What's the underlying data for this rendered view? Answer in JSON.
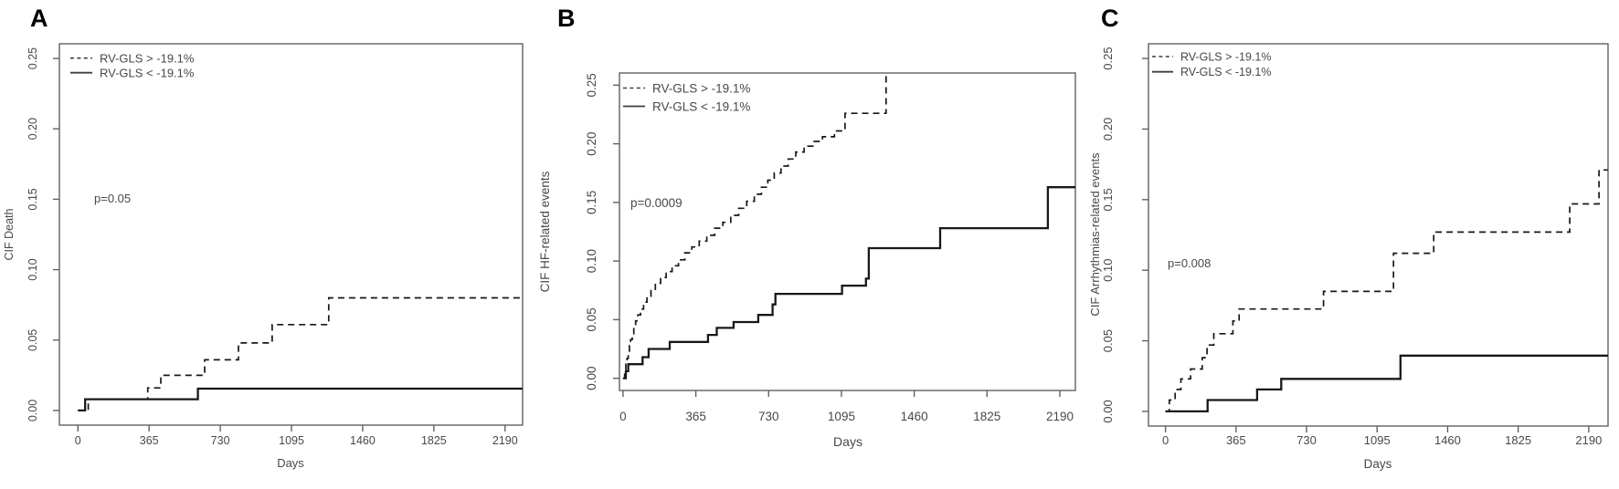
{
  "figure": {
    "background": "#ffffff",
    "curve_color": "#17181a",
    "text_color": "#43494f"
  },
  "chart_data": [
    {
      "type": "line",
      "step": true,
      "panel_label": "A",
      "title": "",
      "xlabel": "Days",
      "ylabel": "CIF Death",
      "p_value": "p=0.05",
      "x_ticks": [
        "0",
        "365",
        "730",
        "1095",
        "1460",
        "1825",
        "2190"
      ],
      "x_tick_values": [
        0,
        365,
        730,
        1095,
        1460,
        1825,
        2190
      ],
      "y_ticks": [
        "0.00",
        "0.05",
        "0.10",
        "0.15",
        "0.20",
        "0.25"
      ],
      "y_tick_values": [
        0,
        0.05,
        0.1,
        0.15,
        0.2,
        0.25
      ],
      "xlim": [
        -95,
        2280
      ],
      "ylim": [
        -0.0104,
        0.2604
      ],
      "grid": false,
      "legend_position": "top-left",
      "legend": [
        {
          "name": "RV-GLS > -19.1%",
          "line": "dashed"
        },
        {
          "name": "RV-GLS < -19.1%",
          "line": "solid"
        }
      ],
      "series": [
        {
          "name": "RV-GLS > -19.1%",
          "line": "dashed",
          "points": [
            [
              0,
              0
            ],
            [
              53,
              0.008
            ],
            [
              358,
              0.016
            ],
            [
              425,
              0.025
            ],
            [
              650,
              0.036
            ],
            [
              823,
              0.048
            ],
            [
              996,
              0.061
            ],
            [
              1286,
              0.08
            ],
            [
              2280,
              0.08
            ]
          ]
        },
        {
          "name": "RV-GLS < -19.1%",
          "line": "solid",
          "points": [
            [
              0,
              0
            ],
            [
              37,
              0.008
            ],
            [
              615,
              0.0155
            ],
            [
              2280,
              0.0155
            ]
          ]
        }
      ]
    },
    {
      "type": "line",
      "step": true,
      "panel_label": "B",
      "title": "",
      "xlabel": "Days",
      "ylabel": "CIF HF-related events",
      "p_value": "p=0.0009",
      "x_ticks": [
        "0",
        "365",
        "730",
        "1095",
        "1460",
        "1825",
        "2190"
      ],
      "x_tick_values": [
        0,
        365,
        730,
        1095,
        1460,
        1825,
        2190
      ],
      "y_ticks": [
        "0.00",
        "0.05",
        "0.10",
        "0.15",
        "0.20",
        "0.25"
      ],
      "y_tick_values": [
        0,
        0.05,
        0.1,
        0.15,
        0.2,
        0.25
      ],
      "xlim": [
        -18,
        2268
      ],
      "ylim": [
        -0.0104,
        0.2604
      ],
      "grid": false,
      "legend_position": "top-left",
      "legend": [
        {
          "name": "RV-GLS > -19.1%",
          "line": "dashed"
        },
        {
          "name": "RV-GLS < -19.1%",
          "line": "solid"
        }
      ],
      "series": [
        {
          "name": "RV-GLS > -19.1%",
          "line": "dashed",
          "points": [
            [
              0,
              0
            ],
            [
              8,
              0.006
            ],
            [
              14,
              0.012
            ],
            [
              20,
              0.017
            ],
            [
              26,
              0.022
            ],
            [
              32,
              0.028
            ],
            [
              38,
              0.033
            ],
            [
              46,
              0.038
            ],
            [
              54,
              0.044
            ],
            [
              63,
              0.049
            ],
            [
              74,
              0.054
            ],
            [
              88,
              0.059
            ],
            [
              103,
              0.065
            ],
            [
              120,
              0.07
            ],
            [
              140,
              0.075
            ],
            [
              162,
              0.081
            ],
            [
              188,
              0.086
            ],
            [
              216,
              0.091
            ],
            [
              246,
              0.096
            ],
            [
              278,
              0.101
            ],
            [
              310,
              0.107
            ],
            [
              345,
              0.112
            ],
            [
              382,
              0.117
            ],
            [
              420,
              0.122
            ],
            [
              460,
              0.128
            ],
            [
              500,
              0.133
            ],
            [
              540,
              0.139
            ],
            [
              580,
              0.145
            ],
            [
              620,
              0.151
            ],
            [
              658,
              0.157
            ],
            [
              694,
              0.163
            ],
            [
              726,
              0.169
            ],
            [
              758,
              0.175
            ],
            [
              792,
              0.181
            ],
            [
              828,
              0.187
            ],
            [
              866,
              0.193
            ],
            [
              908,
              0.198
            ],
            [
              952,
              0.202
            ],
            [
              1000,
              0.206
            ],
            [
              1060,
              0.211
            ],
            [
              1113,
              0.226
            ],
            [
              1319,
              0.2604
            ]
          ]
        },
        {
          "name": "RV-GLS < -19.1%",
          "line": "solid",
          "points": [
            [
              0,
              0
            ],
            [
              14,
              0.006
            ],
            [
              26,
              0.012
            ],
            [
              98,
              0.018
            ],
            [
              128,
              0.025
            ],
            [
              234,
              0.031
            ],
            [
              426,
              0.037
            ],
            [
              470,
              0.043
            ],
            [
              554,
              0.048
            ],
            [
              678,
              0.054
            ],
            [
              750,
              0.063
            ],
            [
              764,
              0.072
            ],
            [
              1098,
              0.079
            ],
            [
              1218,
              0.085
            ],
            [
              1232,
              0.111
            ],
            [
              1590,
              0.128
            ],
            [
              2130,
              0.163
            ],
            [
              2268,
              0.163
            ]
          ]
        }
      ]
    },
    {
      "type": "line",
      "step": true,
      "panel_label": "C",
      "title": "",
      "xlabel": "Days",
      "ylabel": "CIF Arrhythmias-related events",
      "p_value": "p=0.008",
      "x_ticks": [
        "0",
        "365",
        "730",
        "1095",
        "1460",
        "1825",
        "2190"
      ],
      "x_tick_values": [
        0,
        365,
        730,
        1095,
        1460,
        1825,
        2190
      ],
      "y_ticks": [
        "0.00",
        "0.05",
        "0.10",
        "0.15",
        "0.20",
        "0.25"
      ],
      "y_tick_values": [
        0,
        0.05,
        0.1,
        0.15,
        0.2,
        0.25
      ],
      "xlim": [
        -88,
        2290
      ],
      "ylim": [
        -0.0104,
        0.2604
      ],
      "grid": false,
      "legend_position": "top-left",
      "legend": [
        {
          "name": "RV-GLS > -19.1%",
          "line": "dashed"
        },
        {
          "name": "RV-GLS < -19.1%",
          "line": "solid"
        }
      ],
      "series": [
        {
          "name": "RV-GLS > -19.1%",
          "line": "dashed",
          "points": [
            [
              0,
              0
            ],
            [
              20,
              0.008
            ],
            [
              50,
              0.0155
            ],
            [
              80,
              0.023
            ],
            [
              130,
              0.03
            ],
            [
              190,
              0.038
            ],
            [
              215,
              0.047
            ],
            [
              250,
              0.055
            ],
            [
              349,
              0.064
            ],
            [
              381,
              0.0725
            ],
            [
              818,
              0.085
            ],
            [
              1180,
              0.112
            ],
            [
              1388,
              0.127
            ],
            [
              2092,
              0.147
            ],
            [
              2243,
              0.171
            ],
            [
              2290,
              0.171
            ]
          ]
        },
        {
          "name": "RV-GLS < -19.1%",
          "line": "solid",
          "points": [
            [
              0,
              0
            ],
            [
              218,
              0.008
            ],
            [
              474,
              0.0155
            ],
            [
              599,
              0.023
            ],
            [
              1216,
              0.0395
            ],
            [
              2290,
              0.0395
            ]
          ]
        }
      ]
    }
  ]
}
